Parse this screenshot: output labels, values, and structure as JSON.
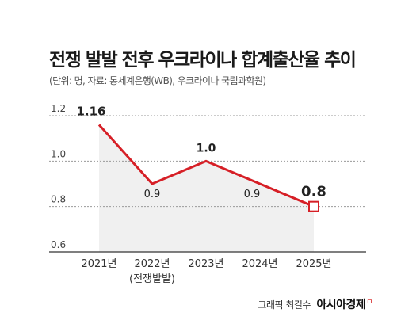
{
  "title": "전쟁 발발 전후 우크라이나 합계출산율 추이",
  "source": "(단위: 명, 자료: 통세계은행(WB), 우크라이나 국립과학원)",
  "footer": {
    "credit": "그래픽 최길수",
    "brand": "아시아경제",
    "mark": "ㅁ"
  },
  "colors": {
    "line": "#d61f26",
    "area": "#f0f0f0",
    "grid": "#999999",
    "text": "#222222"
  },
  "chart_data": {
    "type": "line",
    "categories": [
      "2021년",
      "2022년",
      "2023년",
      "2024년",
      "2025년"
    ],
    "category_notes": [
      "",
      "(전쟁발발)",
      "",
      "",
      ""
    ],
    "values": [
      1.16,
      0.9,
      1.0,
      0.9,
      0.8
    ],
    "value_labels": [
      "1.16",
      "0.9",
      "1.0",
      "0.9",
      "0.8"
    ],
    "ylim": [
      0.6,
      1.2
    ],
    "yticks": [
      0.6,
      0.8,
      1.0,
      1.2
    ],
    "ytick_labels": [
      "0.6",
      "0.8",
      "1.0",
      "1.2"
    ],
    "grid": true,
    "highlight_last": true,
    "xlabel": "",
    "ylabel": ""
  }
}
